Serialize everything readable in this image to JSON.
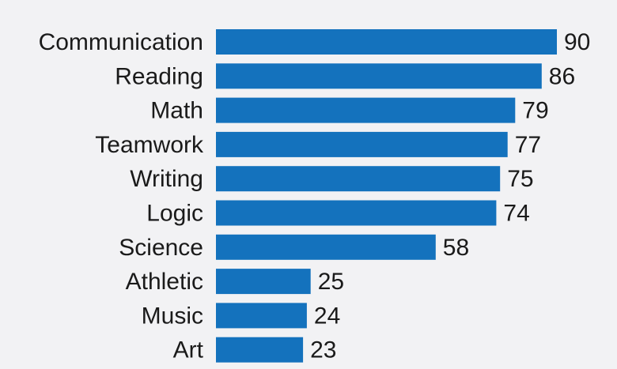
{
  "chart_data": {
    "type": "bar",
    "orientation": "horizontal",
    "categories": [
      "Communication",
      "Reading",
      "Math",
      "Teamwork",
      "Writing",
      "Logic",
      "Science",
      "Athletic",
      "Music",
      "Art"
    ],
    "values": [
      90,
      86,
      79,
      77,
      75,
      74,
      58,
      25,
      24,
      23
    ],
    "xlim": [
      0,
      90
    ],
    "grid": false,
    "legend": "none",
    "bar_color": "#1472bd"
  }
}
